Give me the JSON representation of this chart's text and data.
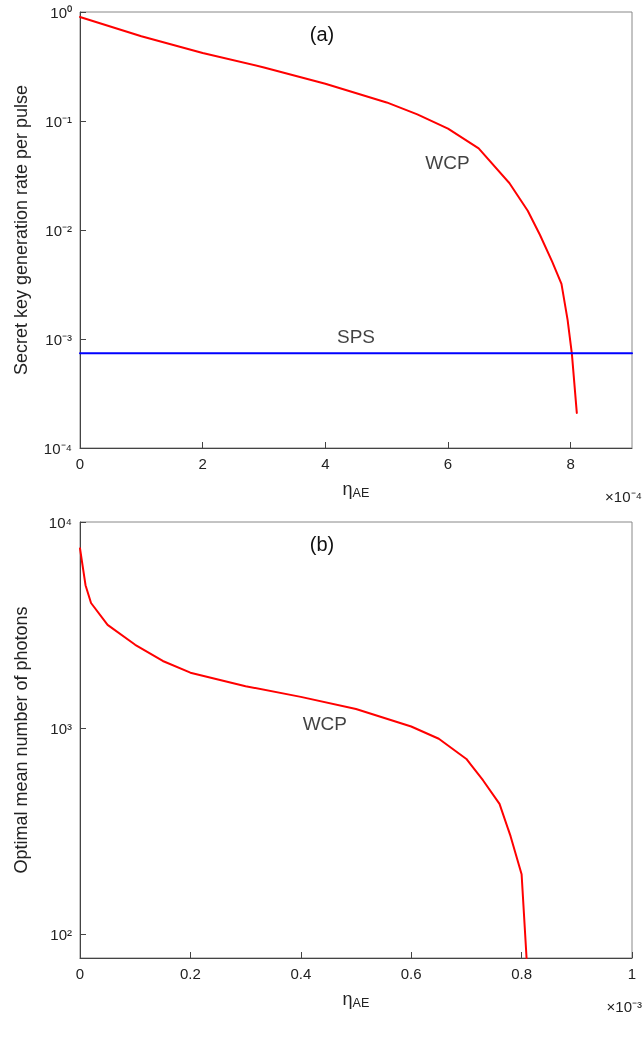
{
  "chart_data": [
    {
      "type": "line",
      "xlabel": "η$_{AE}$",
      "ylabel": "Secret key generation rate per pulse",
      "log": "y",
      "grid": false,
      "legend": false,
      "marker": "none",
      "line_style": "solid",
      "xlim": [
        0,
        9
      ],
      "xticks": [
        0,
        2,
        4,
        6,
        8
      ],
      "ylim": [
        0.0001,
        1
      ],
      "yticks": [
        {
          "value": 0.0001,
          "label": "10⁻⁴"
        },
        {
          "value": 0.001,
          "label": "10⁻³"
        },
        {
          "value": 0.01,
          "label": "10⁻²"
        },
        {
          "value": 0.1,
          "label": "10⁻¹"
        },
        {
          "value": 1,
          "label": "10⁰"
        }
      ],
      "annotations": [
        "(a)",
        "×10⁻⁴"
      ],
      "series": [
        {
          "name": "WCP",
          "color": "#ff0000",
          "x": [
            0,
            1,
            2,
            3,
            4,
            5,
            5.5,
            6,
            6.5,
            7,
            7.3,
            7.5,
            7.7,
            7.85,
            7.95,
            8.02,
            8.1
          ],
          "values": [
            0.9,
            0.6,
            0.42,
            0.31,
            0.22,
            0.148,
            0.115,
            0.085,
            0.056,
            0.027,
            0.015,
            0.009,
            0.0051,
            0.0032,
            0.0015,
            0.00073,
            0.00021
          ]
        },
        {
          "name": "SPS",
          "color": "#0000ff",
          "x": [
            0,
            9
          ],
          "values": [
            0.00074,
            0.00074
          ]
        }
      ]
    },
    {
      "type": "line",
      "xlabel": "η$_{AE}$",
      "ylabel": "Optimal mean number of photons",
      "log": "y",
      "grid": false,
      "legend": false,
      "marker": "none",
      "line_style": "solid",
      "xlim": [
        0,
        1
      ],
      "xticks": [
        0,
        0.2,
        0.4,
        0.6,
        0.8,
        1
      ],
      "ylim": [
        77,
        10000
      ],
      "yticks": [
        {
          "value": 100,
          "label": "10²"
        },
        {
          "value": 1000,
          "label": "10³"
        },
        {
          "value": 10000,
          "label": "10⁴"
        }
      ],
      "annotations": [
        "(b)",
        "×10⁻³"
      ],
      "series": [
        {
          "name": "WCP",
          "color": "#ff0000",
          "x": [
            0,
            0.01,
            0.02,
            0.05,
            0.1,
            0.15,
            0.2,
            0.3,
            0.4,
            0.5,
            0.6,
            0.65,
            0.7,
            0.73,
            0.76,
            0.78,
            0.8,
            0.809
          ],
          "values": [
            7450,
            4940,
            4050,
            3170,
            2540,
            2120,
            1860,
            1600,
            1420,
            1240,
            1020,
            890,
            710,
            560,
            430,
            300,
            196,
            77
          ]
        }
      ]
    }
  ]
}
